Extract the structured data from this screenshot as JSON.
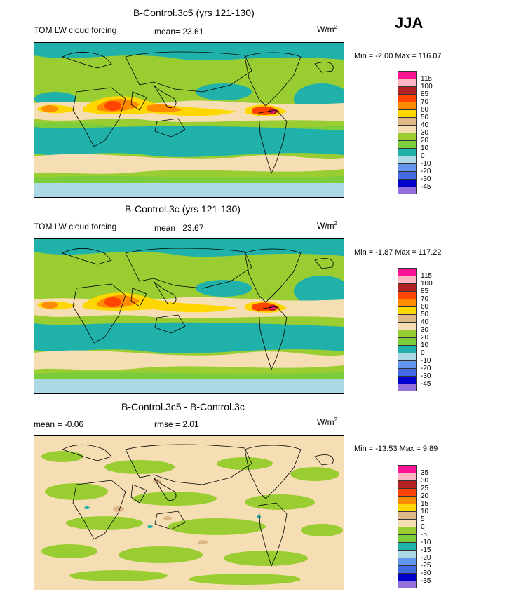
{
  "season": "JJA",
  "panels": [
    {
      "title": "B-Control.3c5 (yrs 121-130)",
      "left_label": "TOM LW cloud forcing",
      "stat_text": "mean=  23.61",
      "units": "W/m",
      "units_sup": "2",
      "minmax": "Min =   -2.00  Max = 116.07",
      "colorbar_labels": [
        "115",
        "100",
        "85",
        "70",
        "60",
        "50",
        "40",
        "30",
        "20",
        "10",
        "0",
        "-10",
        "-20",
        "-30",
        "-45"
      ],
      "colors": [
        "#ff1493",
        "#ffb6c1",
        "#b22222",
        "#ff4500",
        "#ff8c00",
        "#ffd700",
        "#deb887",
        "#f5deb3",
        "#9acd32",
        "#7ccd3c",
        "#20b2aa",
        "#add8e6",
        "#6495ed",
        "#4169e1",
        "#0000cd",
        "#9370db"
      ]
    },
    {
      "title": "B-Control.3c (yrs 121-130)",
      "left_label": "TOM LW cloud forcing",
      "stat_text": "mean=  23.67",
      "units": "W/m",
      "units_sup": "2",
      "minmax": "Min =   -1.87  Max = 117.22",
      "colorbar_labels": [
        "115",
        "100",
        "85",
        "70",
        "60",
        "50",
        "40",
        "30",
        "20",
        "10",
        "0",
        "-10",
        "-20",
        "-30",
        "-45"
      ],
      "colors": [
        "#ff1493",
        "#ffb6c1",
        "#b22222",
        "#ff4500",
        "#ff8c00",
        "#ffd700",
        "#deb887",
        "#f5deb3",
        "#9acd32",
        "#7ccd3c",
        "#20b2aa",
        "#add8e6",
        "#6495ed",
        "#4169e1",
        "#0000cd",
        "#9370db"
      ]
    },
    {
      "title": "B-Control.3c5 - B-Control.3c",
      "left_label": "mean =   -0.06",
      "stat_text": "rmse =    2.01",
      "units": "W/m",
      "units_sup": "2",
      "minmax": "Min = -13.53  Max =    9.89",
      "colorbar_labels": [
        "35",
        "30",
        "25",
        "20",
        "15",
        "10",
        "5",
        "0",
        "-5",
        "-10",
        "-15",
        "-20",
        "-25",
        "-30",
        "-35"
      ],
      "colors": [
        "#ff1493",
        "#ffb6c1",
        "#b22222",
        "#ff4500",
        "#ff8c00",
        "#ffd700",
        "#deb887",
        "#f5deb3",
        "#9acd32",
        "#7ccd3c",
        "#20b2aa",
        "#add8e6",
        "#6495ed",
        "#4169e1",
        "#0000cd",
        "#9370db"
      ]
    }
  ]
}
